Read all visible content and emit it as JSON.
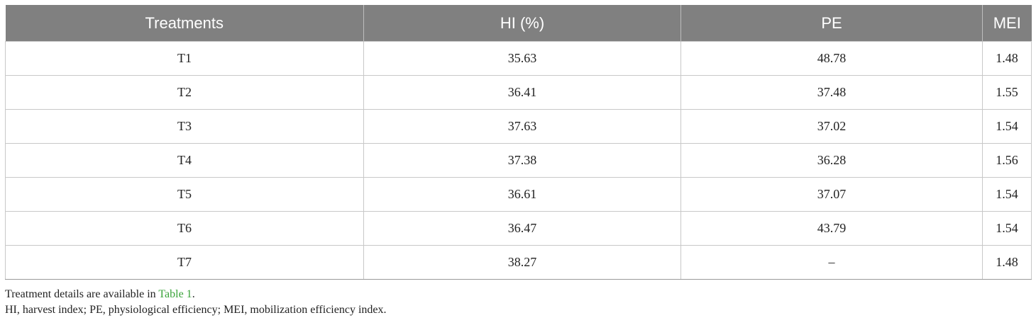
{
  "table": {
    "headers": [
      "Treatments",
      "HI (%)",
      "PE",
      "MEI"
    ],
    "rows": [
      [
        "T1",
        "35.63",
        "48.78",
        "1.48"
      ],
      [
        "T2",
        "36.41",
        "37.48",
        "1.55"
      ],
      [
        "T3",
        "37.63",
        "37.02",
        "1.54"
      ],
      [
        "T4",
        "37.38",
        "36.28",
        "1.56"
      ],
      [
        "T5",
        "36.61",
        "37.07",
        "1.54"
      ],
      [
        "T6",
        "36.47",
        "43.79",
        "1.54"
      ],
      [
        "T7",
        "38.27",
        "–",
        "1.48"
      ]
    ]
  },
  "footnotes": {
    "line1_prefix": "Treatment details are available in ",
    "line1_link": "Table 1",
    "line1_suffix": ".",
    "line2": "HI, harvest index; PE, physiological efficiency; MEI, mobilization efficiency index."
  },
  "colors": {
    "header_bg": "#808080",
    "header_text": "#ffffff",
    "link": "#3aa33a"
  }
}
